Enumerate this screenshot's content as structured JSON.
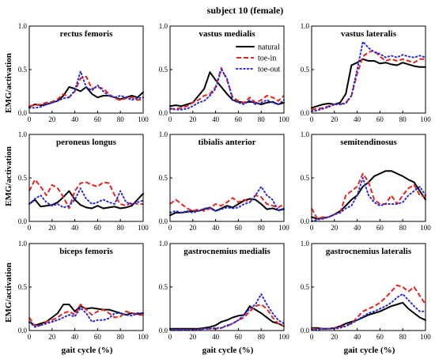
{
  "figure": {
    "title": "subject 10 (female)",
    "ylabel": "EMG/activation",
    "xlabel": "gait cycle (%)",
    "legend_position": "top-right of vastus medialis panel"
  },
  "chart_data": {
    "type": "line",
    "layout": "3x3 small multiples",
    "shared_x_ticks": [
      0,
      20,
      40,
      60,
      80,
      100
    ],
    "shared_y_ticks": [
      "0.0",
      "0.5",
      "1.0"
    ],
    "xlim": [
      0,
      100
    ],
    "ylim": [
      0,
      1
    ],
    "legend": [
      {
        "name": "natural",
        "color": "#000000",
        "style": "solid"
      },
      {
        "name": "toe-in",
        "color": "#e8231e",
        "style": "dashed"
      },
      {
        "name": "toe-out",
        "color": "#2a2adf",
        "style": "dotted"
      }
    ],
    "x": [
      0,
      5,
      10,
      15,
      20,
      25,
      30,
      35,
      40,
      45,
      50,
      55,
      60,
      65,
      70,
      75,
      80,
      85,
      90,
      95,
      100
    ],
    "panels": [
      {
        "title": "rectus femoris",
        "series": [
          {
            "name": "natural",
            "values": [
              0.07,
              0.1,
              0.09,
              0.1,
              0.12,
              0.14,
              0.2,
              0.3,
              0.28,
              0.25,
              0.3,
              0.22,
              0.18,
              0.2,
              0.2,
              0.18,
              0.16,
              0.18,
              0.2,
              0.18,
              0.24
            ]
          },
          {
            "name": "toe-in",
            "values": [
              0.08,
              0.09,
              0.1,
              0.12,
              0.13,
              0.16,
              0.22,
              0.18,
              0.25,
              0.4,
              0.42,
              0.28,
              0.3,
              0.28,
              0.22,
              0.17,
              0.15,
              0.17,
              0.18,
              0.15,
              0.16
            ]
          },
          {
            "name": "toe-out",
            "values": [
              0.06,
              0.06,
              0.07,
              0.1,
              0.12,
              0.14,
              0.17,
              0.18,
              0.26,
              0.48,
              0.3,
              0.26,
              0.32,
              0.25,
              0.2,
              0.18,
              0.2,
              0.18,
              0.15,
              0.17,
              0.18
            ]
          }
        ]
      },
      {
        "title": "vastus medialis",
        "series": [
          {
            "name": "natural",
            "values": [
              0.08,
              0.09,
              0.08,
              0.1,
              0.12,
              0.2,
              0.28,
              0.47,
              0.38,
              0.3,
              0.22,
              0.15,
              0.13,
              0.12,
              0.13,
              0.12,
              0.1,
              0.12,
              0.13,
              0.1,
              0.12
            ]
          },
          {
            "name": "toe-in",
            "values": [
              0.05,
              0.05,
              0.06,
              0.08,
              0.12,
              0.15,
              0.2,
              0.22,
              0.3,
              0.52,
              0.38,
              0.18,
              0.14,
              0.12,
              0.18,
              0.12,
              0.15,
              0.2,
              0.18,
              0.14,
              0.2
            ]
          },
          {
            "name": "toe-out",
            "values": [
              0.05,
              0.04,
              0.04,
              0.05,
              0.08,
              0.12,
              0.14,
              0.2,
              0.28,
              0.5,
              0.4,
              0.15,
              0.12,
              0.1,
              0.15,
              0.1,
              0.12,
              0.15,
              0.12,
              0.1,
              0.15
            ]
          }
        ]
      },
      {
        "title": "vastus lateralis",
        "series": [
          {
            "name": "natural",
            "values": [
              0.06,
              0.08,
              0.1,
              0.11,
              0.1,
              0.12,
              0.22,
              0.55,
              0.58,
              0.62,
              0.6,
              0.6,
              0.57,
              0.58,
              0.56,
              0.55,
              0.58,
              0.56,
              0.54,
              0.53,
              0.53
            ]
          },
          {
            "name": "toe-in",
            "values": [
              0.04,
              0.05,
              0.06,
              0.08,
              0.1,
              0.1,
              0.12,
              0.2,
              0.45,
              0.65,
              0.7,
              0.72,
              0.65,
              0.6,
              0.62,
              0.6,
              0.62,
              0.6,
              0.58,
              0.62,
              0.62
            ]
          },
          {
            "name": "toe-out",
            "values": [
              0.02,
              0.03,
              0.05,
              0.07,
              0.1,
              0.1,
              0.11,
              0.2,
              0.5,
              0.82,
              0.75,
              0.7,
              0.68,
              0.64,
              0.66,
              0.64,
              0.67,
              0.65,
              0.64,
              0.66,
              0.64
            ]
          }
        ]
      },
      {
        "title": "peroneus longus",
        "series": [
          {
            "name": "natural",
            "values": [
              0.2,
              0.25,
              0.17,
              0.18,
              0.19,
              0.22,
              0.28,
              0.35,
              0.25,
              0.19,
              0.16,
              0.15,
              0.18,
              0.15,
              0.16,
              0.17,
              0.15,
              0.16,
              0.18,
              0.25,
              0.32
            ]
          },
          {
            "name": "toe-in",
            "values": [
              0.35,
              0.48,
              0.4,
              0.3,
              0.42,
              0.38,
              0.28,
              0.15,
              0.35,
              0.44,
              0.45,
              0.42,
              0.4,
              0.45,
              0.44,
              0.3,
              0.2,
              0.18,
              0.22,
              0.2,
              0.2
            ]
          },
          {
            "name": "toe-out",
            "values": [
              0.2,
              0.26,
              0.3,
              0.22,
              0.18,
              0.2,
              0.16,
              0.18,
              0.25,
              0.38,
              0.26,
              0.2,
              0.22,
              0.25,
              0.22,
              0.2,
              0.35,
              0.22,
              0.2,
              0.22,
              0.24
            ]
          }
        ]
      },
      {
        "title": "tibialis anterior",
        "series": [
          {
            "name": "natural",
            "values": [
              0.07,
              0.1,
              0.1,
              0.11,
              0.12,
              0.12,
              0.14,
              0.16,
              0.12,
              0.15,
              0.18,
              0.16,
              0.2,
              0.24,
              0.26,
              0.25,
              0.2,
              0.14,
              0.15,
              0.13,
              0.14
            ]
          },
          {
            "name": "toe-in",
            "values": [
              0.2,
              0.25,
              0.2,
              0.15,
              0.12,
              0.14,
              0.12,
              0.15,
              0.2,
              0.18,
              0.22,
              0.27,
              0.22,
              0.25,
              0.22,
              0.3,
              0.28,
              0.2,
              0.18,
              0.16,
              0.2
            ]
          },
          {
            "name": "toe-out",
            "values": [
              0.1,
              0.12,
              0.1,
              0.12,
              0.1,
              0.12,
              0.15,
              0.15,
              0.12,
              0.14,
              0.16,
              0.15,
              0.16,
              0.2,
              0.22,
              0.3,
              0.4,
              0.3,
              0.25,
              0.12,
              0.15
            ]
          }
        ]
      },
      {
        "title": "semitendinosus",
        "series": [
          {
            "name": "natural",
            "values": [
              0.05,
              0.03,
              0.04,
              0.05,
              0.08,
              0.12,
              0.18,
              0.25,
              0.3,
              0.4,
              0.45,
              0.52,
              0.55,
              0.58,
              0.58,
              0.55,
              0.52,
              0.48,
              0.45,
              0.35,
              0.25
            ]
          },
          {
            "name": "toe-in",
            "values": [
              0.15,
              0.03,
              0.05,
              0.05,
              0.08,
              0.1,
              0.3,
              0.35,
              0.4,
              0.55,
              0.45,
              0.25,
              0.2,
              0.2,
              0.3,
              0.2,
              0.3,
              0.38,
              0.42,
              0.3,
              0.28
            ]
          },
          {
            "name": "toe-out",
            "values": [
              0.0,
              0.02,
              0.03,
              0.05,
              0.08,
              0.1,
              0.15,
              0.18,
              0.3,
              0.5,
              0.3,
              0.22,
              0.18,
              0.2,
              0.2,
              0.2,
              0.22,
              0.3,
              0.35,
              0.4,
              0.3
            ]
          }
        ]
      },
      {
        "title": "biceps femoris",
        "series": [
          {
            "name": "natural",
            "values": [
              0.1,
              0.06,
              0.08,
              0.1,
              0.15,
              0.2,
              0.3,
              0.3,
              0.22,
              0.28,
              0.25,
              0.26,
              0.25,
              0.24,
              0.24,
              0.22,
              0.2,
              0.18,
              0.2,
              0.19,
              0.2
            ]
          },
          {
            "name": "toe-in",
            "values": [
              0.15,
              0.05,
              0.06,
              0.1,
              0.12,
              0.15,
              0.2,
              0.22,
              0.18,
              0.3,
              0.24,
              0.18,
              0.22,
              0.24,
              0.2,
              0.15,
              0.16,
              0.22,
              0.2,
              0.18,
              0.18
            ]
          },
          {
            "name": "toe-out",
            "values": [
              0.1,
              0.04,
              0.06,
              0.08,
              0.1,
              0.12,
              0.15,
              0.18,
              0.16,
              0.26,
              0.2,
              0.1,
              0.12,
              0.12,
              0.14,
              0.2,
              0.2,
              0.18,
              0.17,
              0.2,
              0.2
            ]
          }
        ]
      },
      {
        "title": "gastrocnemius medialis",
        "series": [
          {
            "name": "natural",
            "values": [
              0.02,
              0.02,
              0.02,
              0.02,
              0.02,
              0.02,
              0.03,
              0.04,
              0.06,
              0.1,
              0.12,
              0.15,
              0.17,
              0.18,
              0.28,
              0.24,
              0.2,
              0.15,
              0.1,
              0.08,
              0.05
            ]
          },
          {
            "name": "toe-in",
            "values": [
              0.01,
              0.01,
              0.01,
              0.01,
              0.01,
              0.01,
              0.02,
              0.02,
              0.02,
              0.03,
              0.05,
              0.08,
              0.12,
              0.15,
              0.22,
              0.28,
              0.3,
              0.25,
              0.15,
              0.08,
              0.05
            ]
          },
          {
            "name": "toe-out",
            "values": [
              0.01,
              0.01,
              0.01,
              0.01,
              0.01,
              0.01,
              0.02,
              0.02,
              0.03,
              0.03,
              0.06,
              0.08,
              0.12,
              0.18,
              0.25,
              0.3,
              0.42,
              0.3,
              0.2,
              0.12,
              0.08
            ]
          }
        ]
      },
      {
        "title": "gastrocnemius lateralis",
        "series": [
          {
            "name": "natural",
            "values": [
              0.03,
              0.03,
              0.02,
              0.02,
              0.03,
              0.05,
              0.08,
              0.1,
              0.12,
              0.15,
              0.18,
              0.2,
              0.22,
              0.25,
              0.28,
              0.3,
              0.32,
              0.25,
              0.2,
              0.15,
              0.12
            ]
          },
          {
            "name": "toe-in",
            "values": [
              0.02,
              0.02,
              0.02,
              0.02,
              0.03,
              0.04,
              0.06,
              0.08,
              0.15,
              0.22,
              0.25,
              0.28,
              0.32,
              0.38,
              0.45,
              0.52,
              0.5,
              0.45,
              0.5,
              0.4,
              0.3
            ]
          },
          {
            "name": "toe-out",
            "values": [
              0.01,
              0.01,
              0.02,
              0.02,
              0.02,
              0.03,
              0.05,
              0.08,
              0.12,
              0.16,
              0.2,
              0.22,
              0.25,
              0.28,
              0.32,
              0.38,
              0.42,
              0.35,
              0.28,
              0.22,
              0.22
            ]
          }
        ]
      }
    ]
  }
}
